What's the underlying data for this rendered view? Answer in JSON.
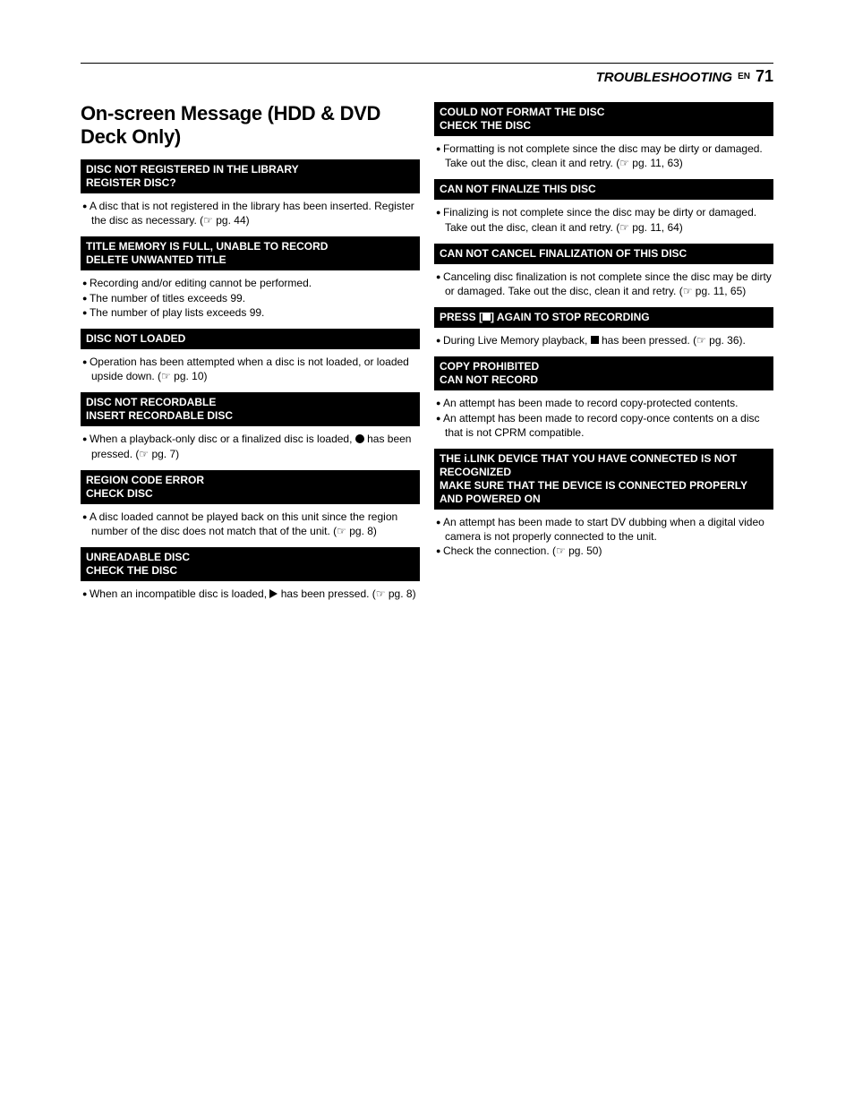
{
  "header": {
    "section": "TROUBLESHOOTING",
    "lang": "EN",
    "page_number": "71"
  },
  "section_title": "On-screen Message (HDD & DVD Deck Only)",
  "left": [
    {
      "bar": "DISC NOT REGISTERED IN THE LIBRARY\nREGISTER DISC?",
      "items": [
        "A disc that is not registered in the library has been inserted. Register the disc as necessary. (☞ pg. 44)"
      ]
    },
    {
      "bar": "TITLE MEMORY IS FULL, UNABLE TO RECORD\nDELETE UNWANTED TITLE",
      "items": [
        "Recording and/or editing cannot be performed.",
        "The number of titles exceeds 99.",
        "The number of play lists exceeds 99."
      ]
    },
    {
      "bar": "DISC NOT LOADED",
      "items": [
        "Operation has been attempted when a disc is not loaded, or loaded upside down. (☞ pg. 10)"
      ]
    },
    {
      "bar": "DISC NOT RECORDABLE\nINSERT RECORDABLE DISC",
      "items": [
        "When a playback-only disc or a finalized disc is loaded, {REC} has been pressed. (☞ pg. 7)"
      ]
    },
    {
      "bar": "REGION CODE ERROR\nCHECK DISC",
      "items": [
        "A disc loaded cannot be played back on this unit since the region number of the disc does not match that of the unit. (☞ pg. 8)"
      ]
    },
    {
      "bar": "UNREADABLE DISC\nCHECK THE DISC",
      "items": [
        "When an incompatible disc is loaded, {PLAY} has been pressed. (☞ pg. 8)"
      ]
    }
  ],
  "right": [
    {
      "bar": "COULD NOT FORMAT THE DISC\nCHECK THE DISC",
      "items": [
        "Formatting is not complete since the disc may be dirty or damaged. Take out the disc, clean it and retry. (☞ pg. 11, 63)"
      ]
    },
    {
      "bar": "CAN NOT FINALIZE THIS DISC",
      "items": [
        "Finalizing is not complete since the disc may be dirty or damaged. Take out the disc, clean it and retry. (☞ pg. 11, 64)"
      ]
    },
    {
      "bar": "CAN NOT CANCEL FINALIZATION OF THIS DISC",
      "items": [
        "Canceling disc finalization is not complete since the disc may be dirty or damaged. Take out the disc, clean it and retry. (☞ pg. 11, 65)"
      ]
    },
    {
      "bar": "PRESS [{WSTOP}] AGAIN TO STOP RECORDING",
      "items": [
        "During Live Memory playback, {STOP} has been pressed. (☞ pg. 36)."
      ]
    },
    {
      "bar": "COPY PROHIBITED\nCAN NOT RECORD",
      "items": [
        "An attempt has been made to record copy-protected contents.",
        "An attempt has been made to record copy-once contents on a disc that is not CPRM compatible."
      ]
    },
    {
      "bar": "THE i.LINK DEVICE THAT YOU HAVE CONNECTED IS NOT RECOGNIZED\nMAKE SURE THAT THE DEVICE IS CONNECTED PROPERLY AND POWERED ON",
      "items": [
        "An attempt has been made to start DV dubbing when a digital video camera is not properly connected to the unit.",
        "Check the connection. (☞ pg. 50)"
      ]
    }
  ]
}
